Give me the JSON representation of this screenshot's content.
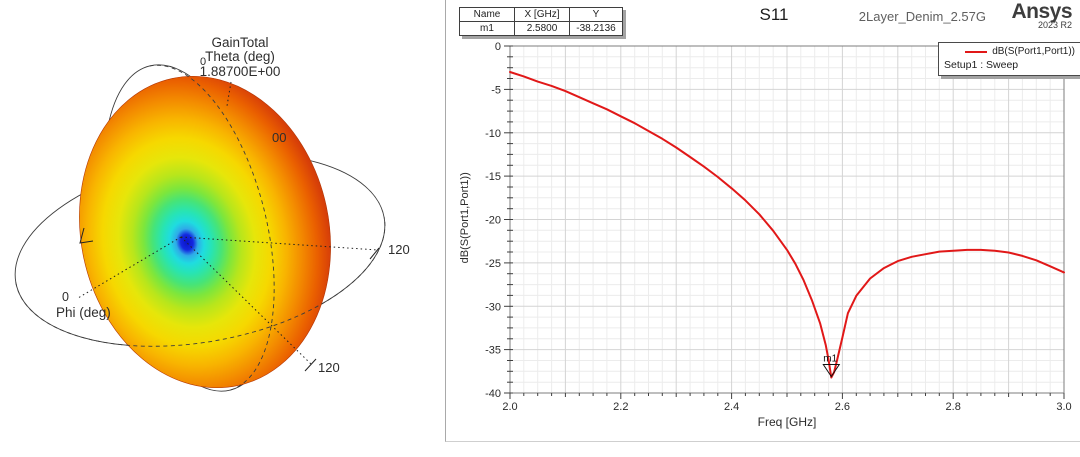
{
  "left_panel": {
    "legend": {
      "title": "GainTotal",
      "subtitle": "Theta (deg)",
      "value": "1.88700E+00"
    },
    "labels": {
      "theta_zero": "0",
      "occluded_tick": "00",
      "right_angle": "120",
      "bottom_angle": "120",
      "phi_zero": "0",
      "phi_axis": "Phi (deg)"
    },
    "donut_gradient": [
      {
        "o": 0,
        "c": "#0a14c8"
      },
      {
        "o": 4,
        "c": "#1428e0"
      },
      {
        "o": 7,
        "c": "#2faae8"
      },
      {
        "o": 11,
        "c": "#1fdce0"
      },
      {
        "o": 16,
        "c": "#27e4b4"
      },
      {
        "o": 22,
        "c": "#46e478"
      },
      {
        "o": 28,
        "c": "#7de63c"
      },
      {
        "o": 35,
        "c": "#b7e61c"
      },
      {
        "o": 44,
        "c": "#e6e60a"
      },
      {
        "o": 54,
        "c": "#f6d800"
      },
      {
        "o": 64,
        "c": "#f8b400"
      },
      {
        "o": 74,
        "c": "#f38a00"
      },
      {
        "o": 84,
        "c": "#ea5f00"
      },
      {
        "o": 92,
        "c": "#d84008"
      },
      {
        "o": 100,
        "c": "#bb3106"
      }
    ]
  },
  "right_panel": {
    "marker_table": {
      "headers": [
        "Name",
        "X [GHz]",
        "Y"
      ],
      "rows": [
        [
          "m1",
          "2.5800",
          "-38.2136"
        ]
      ]
    },
    "title": "S11",
    "design_name": "2Layer_Denim_2.57G",
    "brand": "Ansys",
    "brand_version": "2023 R2",
    "legend": {
      "series_label": "dB(S(Port1,Port1))",
      "setup_label": "Setup1 : Sweep"
    }
  },
  "chart_data": {
    "type": "line",
    "title": "S11",
    "xlabel": "Freq [GHz]",
    "ylabel": "dB(S(Port1,Port1))",
    "xlim": [
      2.0,
      3.0
    ],
    "ylim": [
      -40,
      0
    ],
    "x_major_ticks": [
      2.0,
      2.2,
      2.4,
      2.6,
      2.8,
      3.0
    ],
    "y_major_ticks": [
      0,
      -5,
      -10,
      -15,
      -20,
      -25,
      -30,
      -35,
      -40
    ],
    "x_grid_step": 0.1,
    "x_minor_step": 0.025,
    "y_grid_step": 5,
    "y_minor_step": 1.25,
    "grid": true,
    "legend_position": "top-right",
    "series": [
      {
        "name": "dB(S(Port1,Port1))",
        "setup": "Setup1 : Sweep",
        "color": "#e11818",
        "points": [
          [
            2.0,
            -3.0
          ],
          [
            2.025,
            -3.5
          ],
          [
            2.05,
            -4.1
          ],
          [
            2.075,
            -4.6
          ],
          [
            2.1,
            -5.2
          ],
          [
            2.125,
            -5.9
          ],
          [
            2.15,
            -6.6
          ],
          [
            2.175,
            -7.3
          ],
          [
            2.2,
            -8.1
          ],
          [
            2.225,
            -8.9
          ],
          [
            2.25,
            -9.8
          ],
          [
            2.275,
            -10.7
          ],
          [
            2.3,
            -11.7
          ],
          [
            2.325,
            -12.8
          ],
          [
            2.35,
            -13.9
          ],
          [
            2.375,
            -15.1
          ],
          [
            2.4,
            -16.4
          ],
          [
            2.425,
            -17.8
          ],
          [
            2.45,
            -19.4
          ],
          [
            2.475,
            -21.3
          ],
          [
            2.5,
            -23.5
          ],
          [
            2.515,
            -25.1
          ],
          [
            2.53,
            -27.0
          ],
          [
            2.545,
            -29.3
          ],
          [
            2.56,
            -32.0
          ],
          [
            2.57,
            -34.5
          ],
          [
            2.575,
            -36.2
          ],
          [
            2.58,
            -38.2136
          ],
          [
            2.585,
            -37.6
          ],
          [
            2.59,
            -36.3
          ],
          [
            2.6,
            -33.6
          ],
          [
            2.61,
            -30.8
          ],
          [
            2.625,
            -28.8
          ],
          [
            2.65,
            -26.8
          ],
          [
            2.675,
            -25.6
          ],
          [
            2.7,
            -24.8
          ],
          [
            2.725,
            -24.3
          ],
          [
            2.75,
            -24.0
          ],
          [
            2.775,
            -23.7
          ],
          [
            2.8,
            -23.6
          ],
          [
            2.825,
            -23.5
          ],
          [
            2.85,
            -23.5
          ],
          [
            2.875,
            -23.6
          ],
          [
            2.9,
            -23.8
          ],
          [
            2.925,
            -24.2
          ],
          [
            2.95,
            -24.7
          ],
          [
            2.975,
            -25.4
          ],
          [
            3.0,
            -26.1
          ]
        ]
      }
    ],
    "marker": {
      "name": "m1",
      "x": 2.58,
      "y": -38.2136
    }
  }
}
